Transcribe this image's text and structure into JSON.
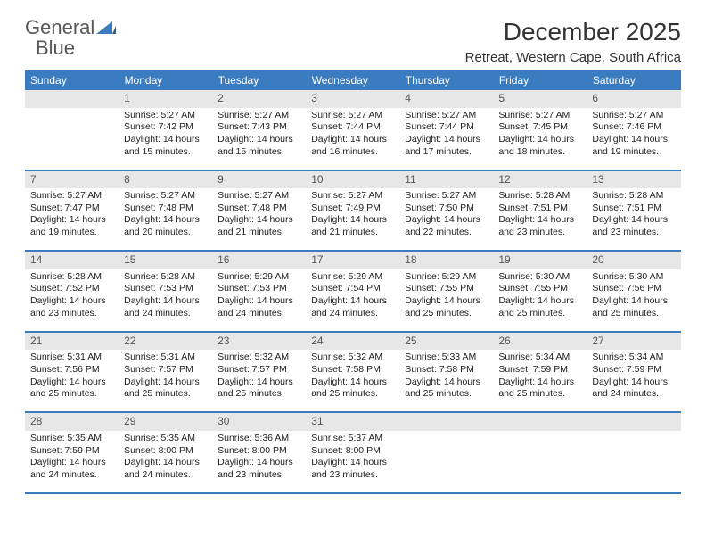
{
  "logo": {
    "text_gray": "General",
    "text_blue": "Blue"
  },
  "title": "December 2025",
  "location": "Retreat, Western Cape, South Africa",
  "colors": {
    "header_blue": "#3b7bbf",
    "daynum_bg": "#e7e7e7",
    "text_dark": "#222222",
    "logo_gray": "#555759"
  },
  "weekdays": [
    "Sunday",
    "Monday",
    "Tuesday",
    "Wednesday",
    "Thursday",
    "Friday",
    "Saturday"
  ],
  "weeks": [
    {
      "nums": [
        "",
        "1",
        "2",
        "3",
        "4",
        "5",
        "6"
      ],
      "cells": [
        [],
        [
          "Sunrise: 5:27 AM",
          "Sunset: 7:42 PM",
          "Daylight: 14 hours",
          "and 15 minutes."
        ],
        [
          "Sunrise: 5:27 AM",
          "Sunset: 7:43 PM",
          "Daylight: 14 hours",
          "and 15 minutes."
        ],
        [
          "Sunrise: 5:27 AM",
          "Sunset: 7:44 PM",
          "Daylight: 14 hours",
          "and 16 minutes."
        ],
        [
          "Sunrise: 5:27 AM",
          "Sunset: 7:44 PM",
          "Daylight: 14 hours",
          "and 17 minutes."
        ],
        [
          "Sunrise: 5:27 AM",
          "Sunset: 7:45 PM",
          "Daylight: 14 hours",
          "and 18 minutes."
        ],
        [
          "Sunrise: 5:27 AM",
          "Sunset: 7:46 PM",
          "Daylight: 14 hours",
          "and 19 minutes."
        ]
      ]
    },
    {
      "nums": [
        "7",
        "8",
        "9",
        "10",
        "11",
        "12",
        "13"
      ],
      "cells": [
        [
          "Sunrise: 5:27 AM",
          "Sunset: 7:47 PM",
          "Daylight: 14 hours",
          "and 19 minutes."
        ],
        [
          "Sunrise: 5:27 AM",
          "Sunset: 7:48 PM",
          "Daylight: 14 hours",
          "and 20 minutes."
        ],
        [
          "Sunrise: 5:27 AM",
          "Sunset: 7:48 PM",
          "Daylight: 14 hours",
          "and 21 minutes."
        ],
        [
          "Sunrise: 5:27 AM",
          "Sunset: 7:49 PM",
          "Daylight: 14 hours",
          "and 21 minutes."
        ],
        [
          "Sunrise: 5:27 AM",
          "Sunset: 7:50 PM",
          "Daylight: 14 hours",
          "and 22 minutes."
        ],
        [
          "Sunrise: 5:28 AM",
          "Sunset: 7:51 PM",
          "Daylight: 14 hours",
          "and 23 minutes."
        ],
        [
          "Sunrise: 5:28 AM",
          "Sunset: 7:51 PM",
          "Daylight: 14 hours",
          "and 23 minutes."
        ]
      ]
    },
    {
      "nums": [
        "14",
        "15",
        "16",
        "17",
        "18",
        "19",
        "20"
      ],
      "cells": [
        [
          "Sunrise: 5:28 AM",
          "Sunset: 7:52 PM",
          "Daylight: 14 hours",
          "and 23 minutes."
        ],
        [
          "Sunrise: 5:28 AM",
          "Sunset: 7:53 PM",
          "Daylight: 14 hours",
          "and 24 minutes."
        ],
        [
          "Sunrise: 5:29 AM",
          "Sunset: 7:53 PM",
          "Daylight: 14 hours",
          "and 24 minutes."
        ],
        [
          "Sunrise: 5:29 AM",
          "Sunset: 7:54 PM",
          "Daylight: 14 hours",
          "and 24 minutes."
        ],
        [
          "Sunrise: 5:29 AM",
          "Sunset: 7:55 PM",
          "Daylight: 14 hours",
          "and 25 minutes."
        ],
        [
          "Sunrise: 5:30 AM",
          "Sunset: 7:55 PM",
          "Daylight: 14 hours",
          "and 25 minutes."
        ],
        [
          "Sunrise: 5:30 AM",
          "Sunset: 7:56 PM",
          "Daylight: 14 hours",
          "and 25 minutes."
        ]
      ]
    },
    {
      "nums": [
        "21",
        "22",
        "23",
        "24",
        "25",
        "26",
        "27"
      ],
      "cells": [
        [
          "Sunrise: 5:31 AM",
          "Sunset: 7:56 PM",
          "Daylight: 14 hours",
          "and 25 minutes."
        ],
        [
          "Sunrise: 5:31 AM",
          "Sunset: 7:57 PM",
          "Daylight: 14 hours",
          "and 25 minutes."
        ],
        [
          "Sunrise: 5:32 AM",
          "Sunset: 7:57 PM",
          "Daylight: 14 hours",
          "and 25 minutes."
        ],
        [
          "Sunrise: 5:32 AM",
          "Sunset: 7:58 PM",
          "Daylight: 14 hours",
          "and 25 minutes."
        ],
        [
          "Sunrise: 5:33 AM",
          "Sunset: 7:58 PM",
          "Daylight: 14 hours",
          "and 25 minutes."
        ],
        [
          "Sunrise: 5:34 AM",
          "Sunset: 7:59 PM",
          "Daylight: 14 hours",
          "and 25 minutes."
        ],
        [
          "Sunrise: 5:34 AM",
          "Sunset: 7:59 PM",
          "Daylight: 14 hours",
          "and 24 minutes."
        ]
      ]
    },
    {
      "nums": [
        "28",
        "29",
        "30",
        "31",
        "",
        "",
        ""
      ],
      "cells": [
        [
          "Sunrise: 5:35 AM",
          "Sunset: 7:59 PM",
          "Daylight: 14 hours",
          "and 24 minutes."
        ],
        [
          "Sunrise: 5:35 AM",
          "Sunset: 8:00 PM",
          "Daylight: 14 hours",
          "and 24 minutes."
        ],
        [
          "Sunrise: 5:36 AM",
          "Sunset: 8:00 PM",
          "Daylight: 14 hours",
          "and 23 minutes."
        ],
        [
          "Sunrise: 5:37 AM",
          "Sunset: 8:00 PM",
          "Daylight: 14 hours",
          "and 23 minutes."
        ],
        [],
        [],
        []
      ]
    }
  ]
}
